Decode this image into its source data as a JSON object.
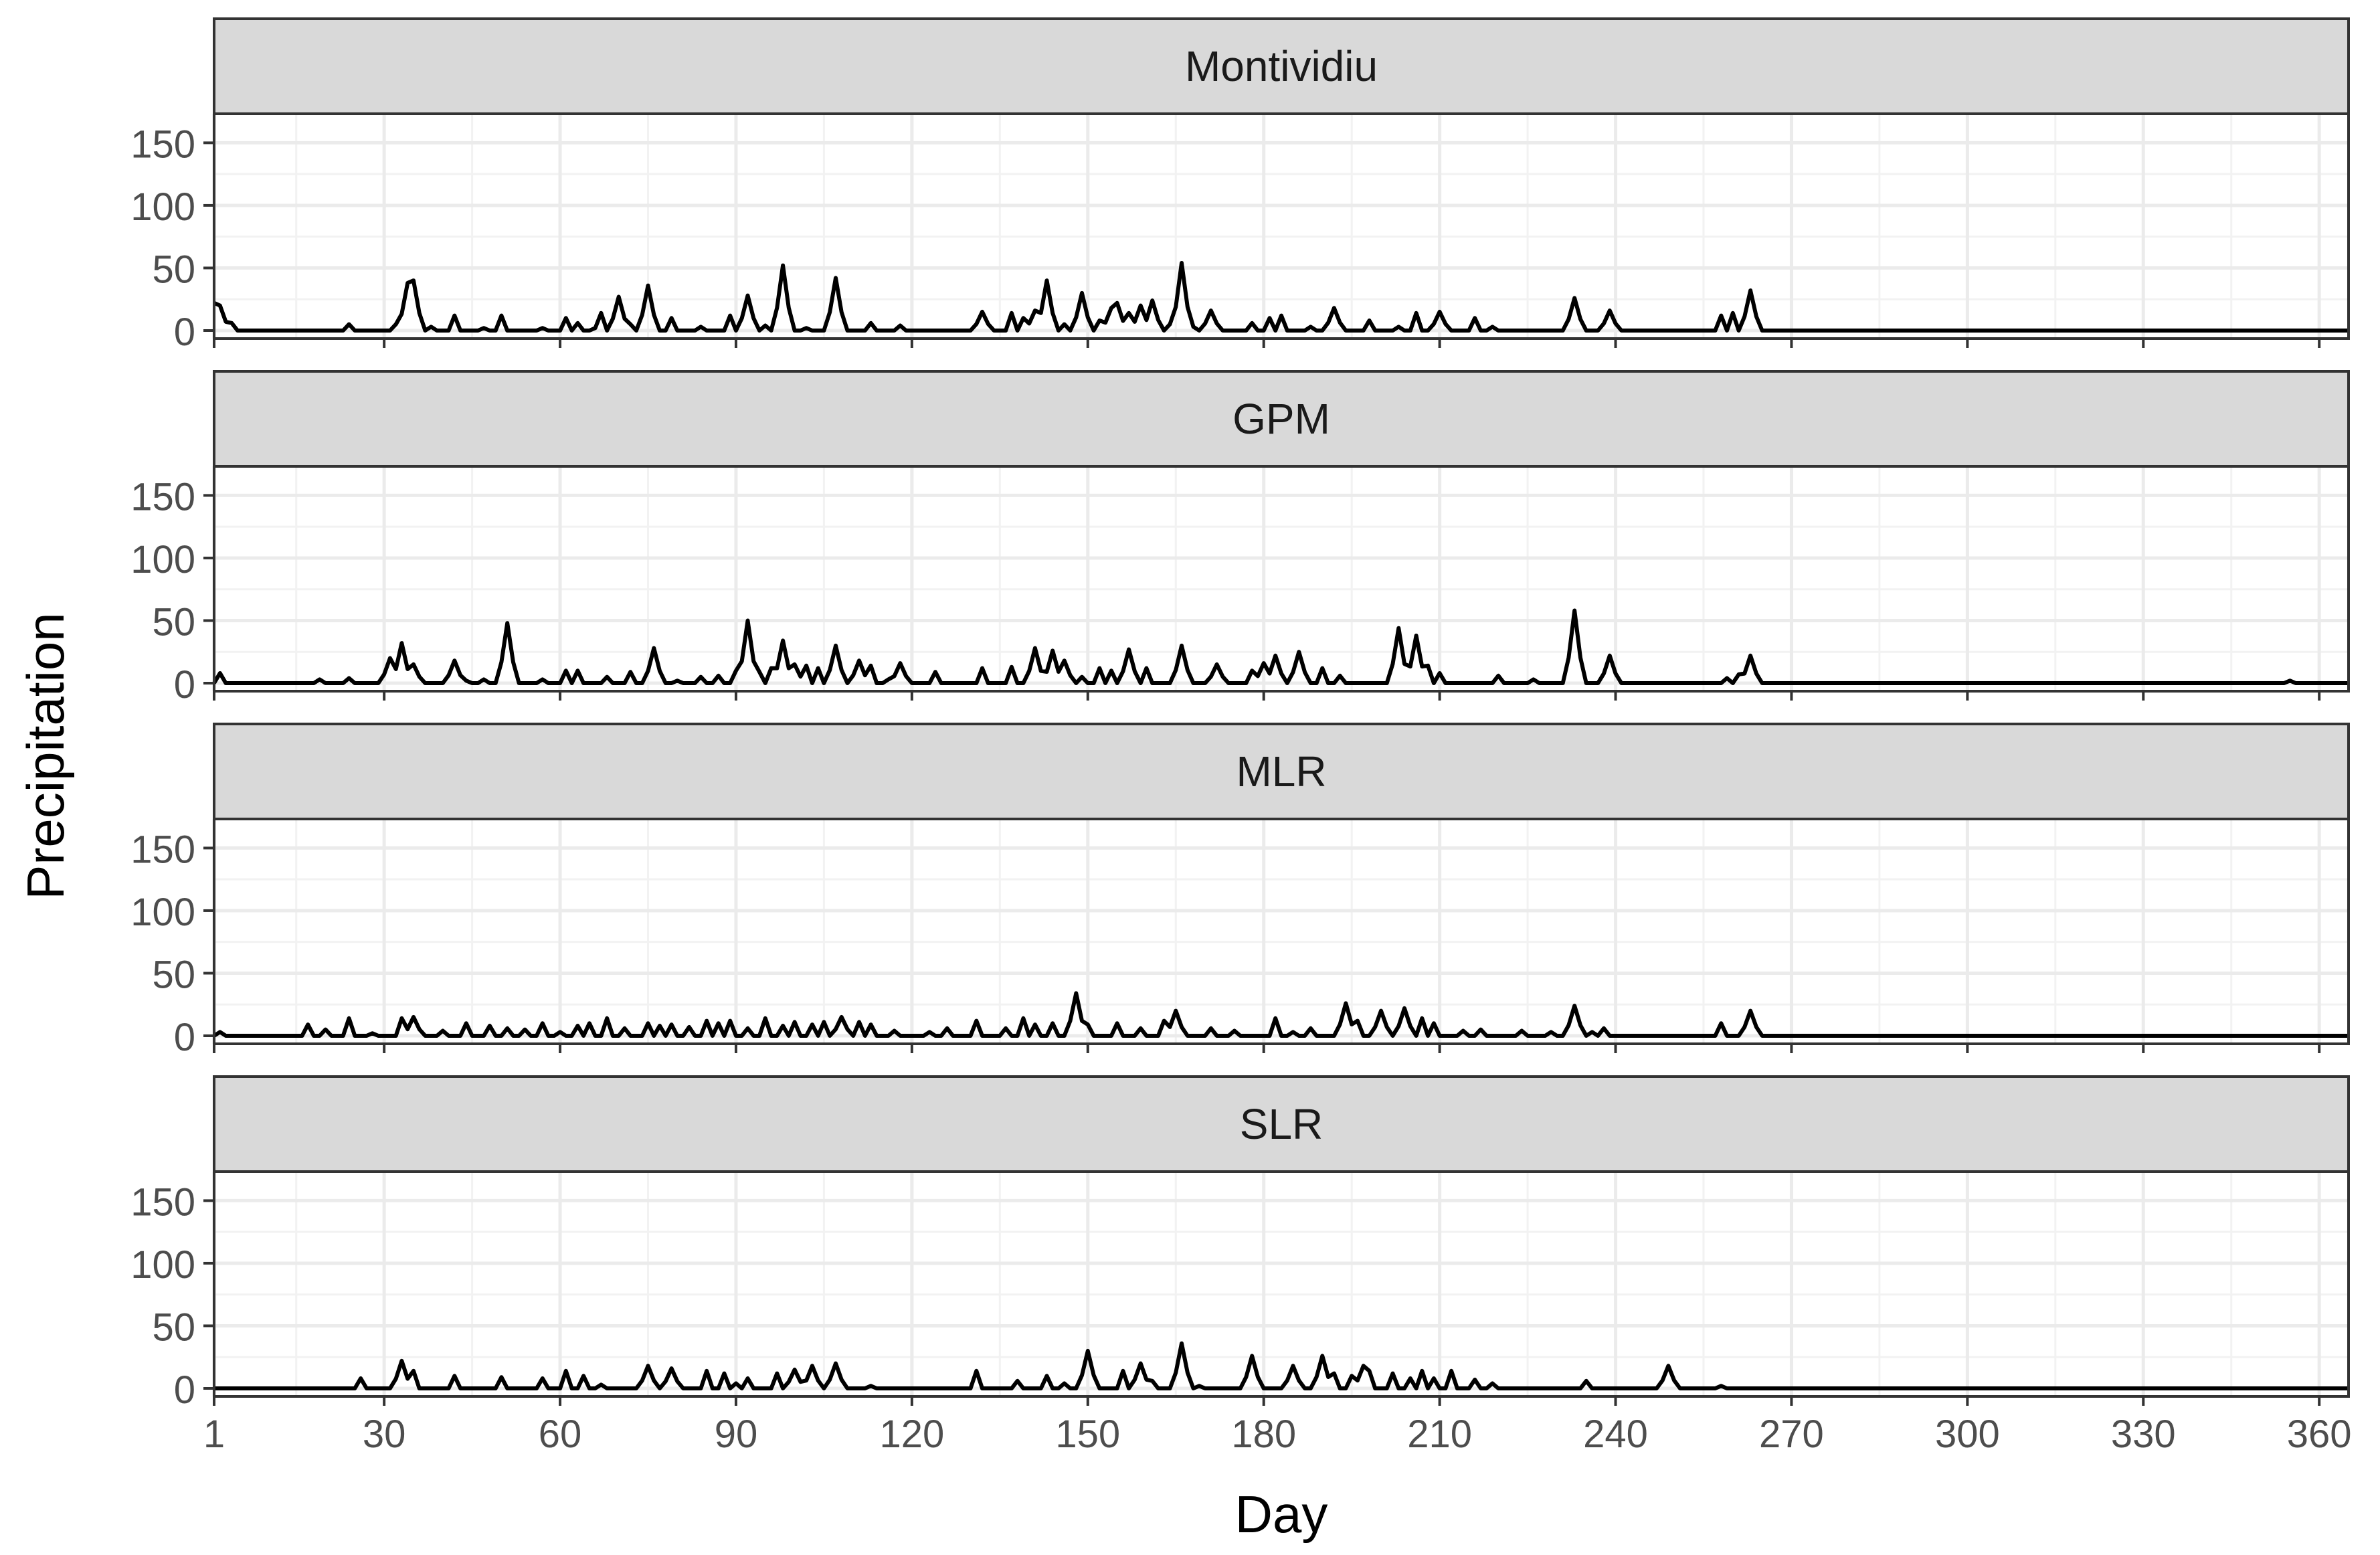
{
  "chart_data": {
    "type": "line",
    "layout": "faceted, 4 panels stacked vertically, shared x axis",
    "xlabel": "Day",
    "ylabel": "Precipitation",
    "xlim": [
      1,
      365
    ],
    "ylim": [
      0,
      170
    ],
    "x_ticks": [
      1,
      30,
      60,
      90,
      120,
      150,
      180,
      210,
      240,
      270,
      300,
      330,
      360
    ],
    "y_ticks": [
      0,
      50,
      100,
      150
    ],
    "grid": true,
    "line_color": "#000000",
    "strip_color": "#d9d9d9",
    "panels": [
      {
        "strip_label": "Montividiu",
        "peaks": [
          [
            1,
            22
          ],
          [
            2,
            20
          ],
          [
            4,
            6
          ],
          [
            24,
            5
          ],
          [
            32,
            5
          ],
          [
            34,
            38
          ],
          [
            35,
            40
          ],
          [
            38,
            3
          ],
          [
            42,
            12
          ],
          [
            47,
            2
          ],
          [
            50,
            12
          ],
          [
            57,
            2
          ],
          [
            61,
            10
          ],
          [
            63,
            6
          ],
          [
            66,
            2
          ],
          [
            67,
            14
          ],
          [
            70,
            27
          ],
          [
            72,
            5
          ],
          [
            75,
            36
          ],
          [
            79,
            10
          ],
          [
            84,
            3
          ],
          [
            89,
            12
          ],
          [
            92,
            28
          ],
          [
            95,
            4
          ],
          [
            98,
            52
          ],
          [
            102,
            2
          ],
          [
            107,
            42
          ],
          [
            113,
            6
          ],
          [
            118,
            4
          ],
          [
            132,
            15
          ],
          [
            137,
            14
          ],
          [
            139,
            10
          ],
          [
            141,
            16
          ],
          [
            143,
            40
          ],
          [
            146,
            5
          ],
          [
            149,
            30
          ],
          [
            152,
            8
          ],
          [
            154,
            18
          ],
          [
            155,
            22
          ],
          [
            157,
            14
          ],
          [
            159,
            20
          ],
          [
            161,
            24
          ],
          [
            164,
            5
          ],
          [
            166,
            54
          ],
          [
            168,
            3
          ],
          [
            171,
            16
          ],
          [
            178,
            6
          ],
          [
            181,
            10
          ],
          [
            183,
            12
          ],
          [
            188,
            3
          ],
          [
            192,
            18
          ],
          [
            198,
            8
          ],
          [
            203,
            3
          ],
          [
            206,
            14
          ],
          [
            210,
            15
          ],
          [
            216,
            10
          ],
          [
            219,
            3
          ],
          [
            233,
            26
          ],
          [
            239,
            16
          ],
          [
            258,
            12
          ],
          [
            260,
            14
          ],
          [
            263,
            32
          ]
        ]
      },
      {
        "strip_label": "GPM",
        "peaks": [
          [
            2,
            8
          ],
          [
            19,
            3
          ],
          [
            24,
            4
          ],
          [
            31,
            20
          ],
          [
            33,
            32
          ],
          [
            35,
            15
          ],
          [
            42,
            18
          ],
          [
            44,
            2
          ],
          [
            47,
            3
          ],
          [
            51,
            48
          ],
          [
            57,
            3
          ],
          [
            61,
            10
          ],
          [
            63,
            10
          ],
          [
            68,
            5
          ],
          [
            72,
            9
          ],
          [
            76,
            28
          ],
          [
            80,
            2
          ],
          [
            84,
            5
          ],
          [
            87,
            6
          ],
          [
            90,
            10
          ],
          [
            92,
            50
          ],
          [
            94,
            9
          ],
          [
            96,
            12
          ],
          [
            98,
            34
          ],
          [
            100,
            15
          ],
          [
            102,
            14
          ],
          [
            104,
            12
          ],
          [
            107,
            30
          ],
          [
            111,
            18
          ],
          [
            113,
            14
          ],
          [
            116,
            3
          ],
          [
            118,
            16
          ],
          [
            124,
            9
          ],
          [
            132,
            12
          ],
          [
            137,
            13
          ],
          [
            141,
            28
          ],
          [
            144,
            26
          ],
          [
            146,
            18
          ],
          [
            149,
            5
          ],
          [
            152,
            12
          ],
          [
            154,
            10
          ],
          [
            157,
            27
          ],
          [
            160,
            12
          ],
          [
            166,
            30
          ],
          [
            172,
            15
          ],
          [
            178,
            10
          ],
          [
            180,
            16
          ],
          [
            182,
            22
          ],
          [
            186,
            25
          ],
          [
            190,
            12
          ],
          [
            193,
            6
          ],
          [
            203,
            44
          ],
          [
            206,
            38
          ],
          [
            208,
            14
          ],
          [
            210,
            8
          ],
          [
            220,
            6
          ],
          [
            226,
            3
          ],
          [
            233,
            58
          ],
          [
            239,
            22
          ],
          [
            259,
            4
          ],
          [
            261,
            7
          ],
          [
            263,
            22
          ],
          [
            355,
            2
          ]
        ]
      },
      {
        "strip_label": "MLR",
        "peaks": [
          [
            2,
            3
          ],
          [
            17,
            9
          ],
          [
            20,
            5
          ],
          [
            24,
            14
          ],
          [
            28,
            2
          ],
          [
            33,
            14
          ],
          [
            35,
            15
          ],
          [
            40,
            4
          ],
          [
            44,
            10
          ],
          [
            48,
            8
          ],
          [
            51,
            6
          ],
          [
            54,
            5
          ],
          [
            57,
            10
          ],
          [
            60,
            3
          ],
          [
            63,
            8
          ],
          [
            65,
            10
          ],
          [
            68,
            14
          ],
          [
            71,
            6
          ],
          [
            75,
            10
          ],
          [
            77,
            8
          ],
          [
            79,
            9
          ],
          [
            82,
            7
          ],
          [
            85,
            12
          ],
          [
            87,
            10
          ],
          [
            89,
            12
          ],
          [
            92,
            6
          ],
          [
            95,
            14
          ],
          [
            98,
            8
          ],
          [
            100,
            11
          ],
          [
            103,
            9
          ],
          [
            105,
            11
          ],
          [
            108,
            15
          ],
          [
            111,
            11
          ],
          [
            113,
            9
          ],
          [
            117,
            4
          ],
          [
            123,
            3
          ],
          [
            126,
            6
          ],
          [
            131,
            12
          ],
          [
            136,
            6
          ],
          [
            139,
            14
          ],
          [
            141,
            9
          ],
          [
            144,
            10
          ],
          [
            148,
            34
          ],
          [
            150,
            9
          ],
          [
            155,
            10
          ],
          [
            159,
            6
          ],
          [
            163,
            12
          ],
          [
            165,
            20
          ],
          [
            171,
            6
          ],
          [
            175,
            4
          ],
          [
            182,
            14
          ],
          [
            185,
            3
          ],
          [
            188,
            6
          ],
          [
            194,
            26
          ],
          [
            196,
            12
          ],
          [
            200,
            20
          ],
          [
            204,
            22
          ],
          [
            207,
            14
          ],
          [
            209,
            10
          ],
          [
            214,
            4
          ],
          [
            217,
            5
          ],
          [
            224,
            4
          ],
          [
            229,
            3
          ],
          [
            233,
            24
          ],
          [
            236,
            3
          ],
          [
            238,
            6
          ],
          [
            258,
            10
          ],
          [
            263,
            20
          ]
        ]
      },
      {
        "strip_label": "SLR",
        "peaks": [
          [
            26,
            8
          ],
          [
            33,
            22
          ],
          [
            35,
            14
          ],
          [
            42,
            10
          ],
          [
            50,
            9
          ],
          [
            57,
            8
          ],
          [
            61,
            14
          ],
          [
            64,
            10
          ],
          [
            67,
            3
          ],
          [
            75,
            18
          ],
          [
            79,
            16
          ],
          [
            85,
            14
          ],
          [
            88,
            12
          ],
          [
            90,
            4
          ],
          [
            92,
            8
          ],
          [
            97,
            12
          ],
          [
            100,
            15
          ],
          [
            103,
            18
          ],
          [
            107,
            20
          ],
          [
            113,
            2
          ],
          [
            131,
            14
          ],
          [
            138,
            6
          ],
          [
            143,
            10
          ],
          [
            146,
            4
          ],
          [
            150,
            30
          ],
          [
            156,
            14
          ],
          [
            159,
            20
          ],
          [
            161,
            6
          ],
          [
            166,
            36
          ],
          [
            169,
            2
          ],
          [
            178,
            26
          ],
          [
            185,
            18
          ],
          [
            190,
            26
          ],
          [
            192,
            12
          ],
          [
            195,
            10
          ],
          [
            197,
            18
          ],
          [
            198,
            14
          ],
          [
            202,
            12
          ],
          [
            205,
            8
          ],
          [
            207,
            14
          ],
          [
            209,
            8
          ],
          [
            212,
            14
          ],
          [
            216,
            7
          ],
          [
            219,
            4
          ],
          [
            235,
            6
          ],
          [
            249,
            18
          ],
          [
            258,
            2
          ]
        ]
      }
    ]
  }
}
